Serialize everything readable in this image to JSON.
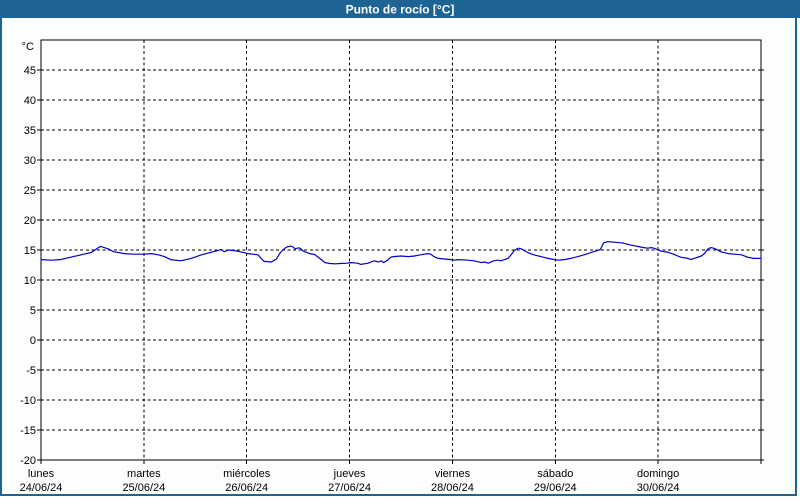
{
  "header": {
    "title": "Punto de rocío [°C]"
  },
  "colors": {
    "titlebar_bg": "#1d6394",
    "panel_border": "#1d6394",
    "page_bg": "#fcfefc",
    "plot_bg": "#ffffff",
    "axis": "#000000",
    "grid": "#000000",
    "title_text": "#ffffff",
    "line": "#0000cc"
  },
  "chart_data": {
    "type": "line",
    "title": "Punto de rocío [°C]",
    "ylabel_unit": "°C",
    "ylim": [
      -20,
      50
    ],
    "ytick_step": 5,
    "ytick_labels": [
      45,
      40,
      35,
      30,
      25,
      20,
      15,
      10,
      5,
      0,
      -5,
      -10,
      -15,
      -20
    ],
    "xlim_days": [
      0,
      7
    ],
    "grid": true,
    "legend": "none",
    "x_categories": [
      {
        "day": "lunes",
        "date": "24/06/24"
      },
      {
        "day": "martes",
        "date": "25/06/24"
      },
      {
        "day": "miércoles",
        "date": "26/06/24"
      },
      {
        "day": "jueves",
        "date": "27/06/24"
      },
      {
        "day": "viernes",
        "date": "28/06/24"
      },
      {
        "day": "sábado",
        "date": "29/06/24"
      },
      {
        "day": "domingo",
        "date": "30/06/24"
      }
    ],
    "series": [
      {
        "name": "Punto de rocío",
        "color": "#0000cc",
        "points": [
          [
            0.0,
            13.4
          ],
          [
            0.1,
            13.3
          ],
          [
            0.19,
            13.4
          ],
          [
            0.29,
            13.8
          ],
          [
            0.39,
            14.2
          ],
          [
            0.49,
            14.6
          ],
          [
            0.55,
            15.3
          ],
          [
            0.58,
            15.6
          ],
          [
            0.65,
            15.2
          ],
          [
            0.71,
            14.7
          ],
          [
            0.81,
            14.4
          ],
          [
            0.9,
            14.3
          ],
          [
            1.0,
            14.3
          ],
          [
            1.07,
            14.4
          ],
          [
            1.14,
            14.2
          ],
          [
            1.2,
            13.9
          ],
          [
            1.26,
            13.4
          ],
          [
            1.36,
            13.2
          ],
          [
            1.46,
            13.6
          ],
          [
            1.56,
            14.2
          ],
          [
            1.65,
            14.6
          ],
          [
            1.72,
            14.9
          ],
          [
            1.75,
            15.1
          ],
          [
            1.78,
            14.7
          ],
          [
            1.82,
            15.0
          ],
          [
            1.88,
            14.9
          ],
          [
            1.94,
            14.7
          ],
          [
            2.01,
            14.4
          ],
          [
            2.11,
            14.2
          ],
          [
            2.14,
            13.6
          ],
          [
            2.17,
            13.1
          ],
          [
            2.24,
            13.0
          ],
          [
            2.29,
            13.5
          ],
          [
            2.32,
            14.4
          ],
          [
            2.35,
            15.0
          ],
          [
            2.39,
            15.5
          ],
          [
            2.43,
            15.65
          ],
          [
            2.45,
            15.5
          ],
          [
            2.47,
            15.2
          ],
          [
            2.5,
            15.35
          ],
          [
            2.52,
            15.3
          ],
          [
            2.55,
            14.8
          ],
          [
            2.61,
            14.4
          ],
          [
            2.66,
            14.25
          ],
          [
            2.71,
            13.6
          ],
          [
            2.76,
            12.9
          ],
          [
            2.81,
            12.75
          ],
          [
            2.86,
            12.7
          ],
          [
            2.91,
            12.75
          ],
          [
            2.98,
            12.8
          ],
          [
            3.01,
            12.9
          ],
          [
            3.08,
            12.8
          ],
          [
            3.11,
            12.6
          ],
          [
            3.18,
            12.8
          ],
          [
            3.21,
            13.0
          ],
          [
            3.24,
            13.2
          ],
          [
            3.28,
            13.0
          ],
          [
            3.31,
            13.2
          ],
          [
            3.33,
            12.9
          ],
          [
            3.37,
            13.3
          ],
          [
            3.4,
            13.8
          ],
          [
            3.43,
            13.9
          ],
          [
            3.5,
            14.0
          ],
          [
            3.57,
            13.9
          ],
          [
            3.63,
            14.0
          ],
          [
            3.69,
            14.2
          ],
          [
            3.76,
            14.4
          ],
          [
            3.79,
            14.3
          ],
          [
            3.82,
            13.9
          ],
          [
            3.86,
            13.6
          ],
          [
            3.92,
            13.5
          ],
          [
            3.99,
            13.4
          ],
          [
            4.02,
            13.3
          ],
          [
            4.05,
            13.4
          ],
          [
            4.15,
            13.3
          ],
          [
            4.21,
            13.2
          ],
          [
            4.28,
            12.9
          ],
          [
            4.31,
            13.0
          ],
          [
            4.35,
            12.8
          ],
          [
            4.4,
            13.2
          ],
          [
            4.44,
            13.3
          ],
          [
            4.47,
            13.2
          ],
          [
            4.54,
            13.6
          ],
          [
            4.57,
            14.2
          ],
          [
            4.6,
            14.9
          ],
          [
            4.64,
            15.3
          ],
          [
            4.67,
            15.2
          ],
          [
            4.7,
            14.9
          ],
          [
            4.73,
            14.6
          ],
          [
            4.79,
            14.2
          ],
          [
            4.86,
            13.9
          ],
          [
            4.93,
            13.6
          ],
          [
            4.99,
            13.4
          ],
          [
            5.03,
            13.3
          ],
          [
            5.09,
            13.4
          ],
          [
            5.15,
            13.6
          ],
          [
            5.22,
            13.9
          ],
          [
            5.28,
            14.2
          ],
          [
            5.35,
            14.6
          ],
          [
            5.41,
            14.9
          ],
          [
            5.44,
            15.1
          ],
          [
            5.47,
            16.2
          ],
          [
            5.51,
            16.4
          ],
          [
            5.57,
            16.3
          ],
          [
            5.64,
            16.2
          ],
          [
            5.67,
            16.1
          ],
          [
            5.74,
            15.8
          ],
          [
            5.8,
            15.6
          ],
          [
            5.86,
            15.4
          ],
          [
            5.9,
            15.3
          ],
          [
            5.93,
            15.4
          ],
          [
            5.96,
            15.3
          ],
          [
            6.0,
            15.0
          ],
          [
            6.03,
            14.8
          ],
          [
            6.1,
            14.6
          ],
          [
            6.15,
            14.3
          ],
          [
            6.19,
            14.0
          ],
          [
            6.22,
            13.8
          ],
          [
            6.29,
            13.6
          ],
          [
            6.32,
            13.4
          ],
          [
            6.35,
            13.6
          ],
          [
            6.42,
            14.0
          ],
          [
            6.45,
            14.4
          ],
          [
            6.48,
            15.1
          ],
          [
            6.51,
            15.4
          ],
          [
            6.54,
            15.3
          ],
          [
            6.58,
            15.0
          ],
          [
            6.61,
            14.7
          ],
          [
            6.68,
            14.4
          ],
          [
            6.74,
            14.3
          ],
          [
            6.81,
            14.2
          ],
          [
            6.87,
            13.8
          ],
          [
            6.93,
            13.6
          ],
          [
            7.0,
            13.6
          ]
        ]
      }
    ]
  }
}
